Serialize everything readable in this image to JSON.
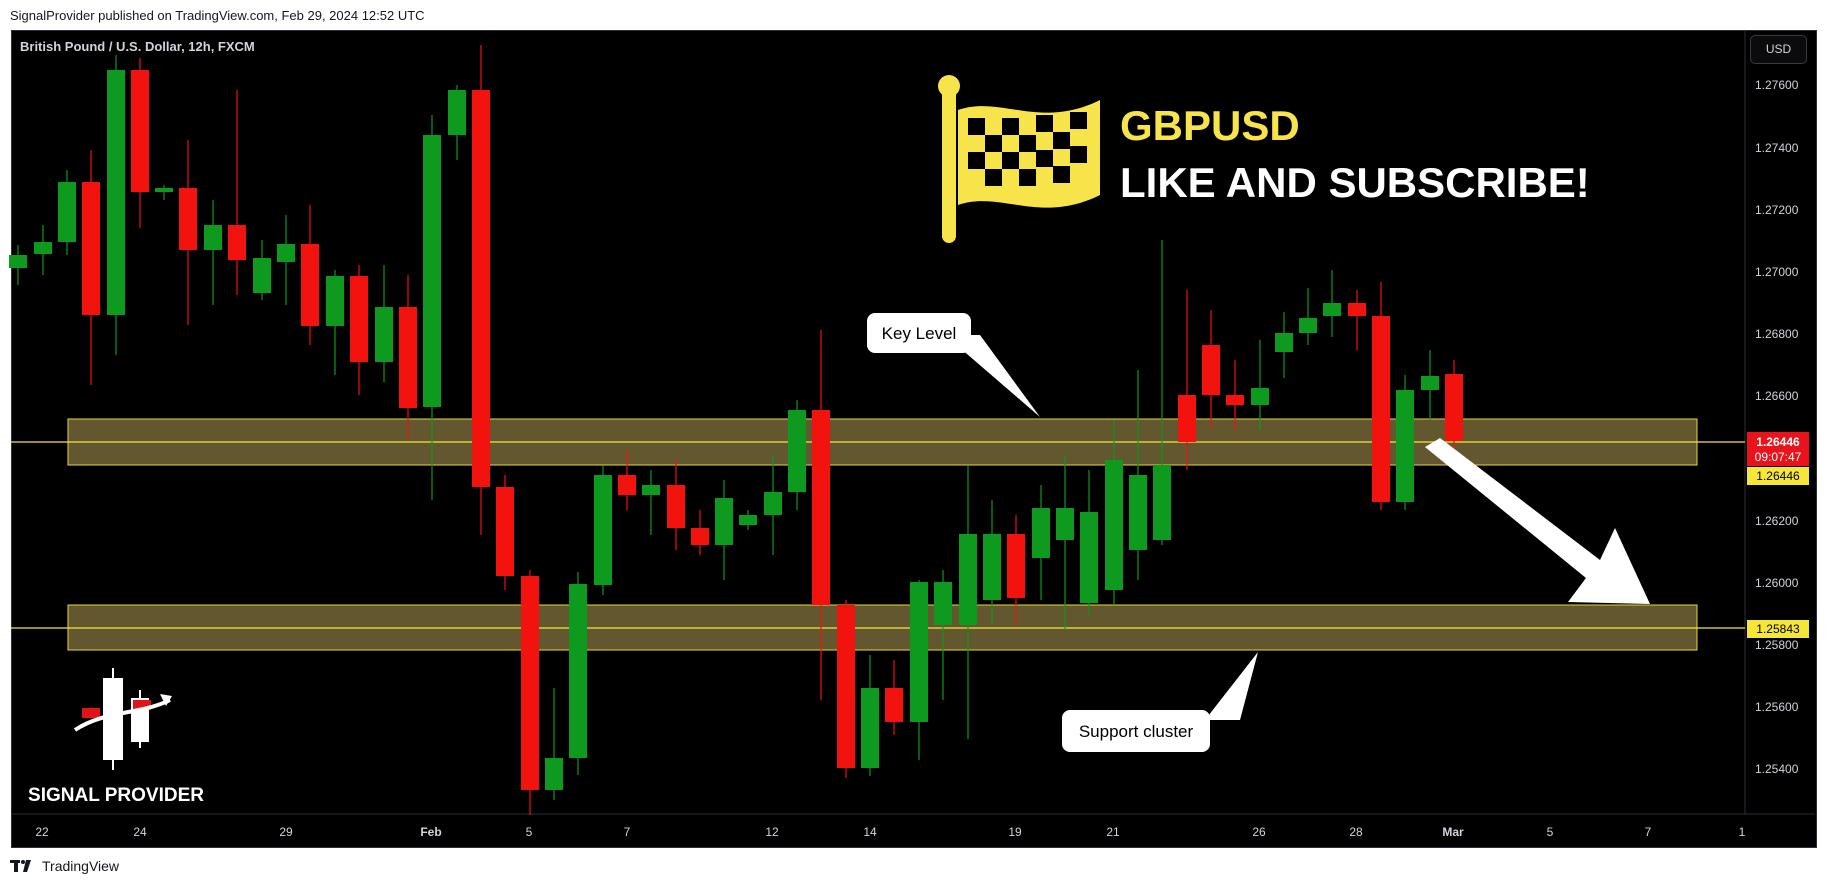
{
  "header": {
    "publish_text": "SignalProvider published on TradingView.com, Feb 29, 2024 12:52 UTC"
  },
  "chart": {
    "symbol_title": "British Pound / U.S. Dollar, 12h, FXCM",
    "currency": "USD",
    "price_axis_labels": [
      "1.27600",
      "1.27400",
      "1.27200",
      "1.27000",
      "1.26800",
      "1.26600",
      "1.26200",
      "1.26000",
      "1.25800",
      "1.25600",
      "1.25400"
    ],
    "time_axis_labels": [
      "22",
      "24",
      "29",
      "Feb",
      "5",
      "7",
      "12",
      "14",
      "19",
      "21",
      "26",
      "28",
      "Mar",
      "5",
      "7",
      "1"
    ],
    "current_price": "1.26446",
    "countdown": "09:07:47",
    "level_upper_label": "1.26446",
    "level_lower_label": "1.25843",
    "colors": {
      "up": "#0d9a1f",
      "down": "#f2120e",
      "zone_fill": "#62572e",
      "zone_border": "#e8d63a",
      "current_price_badge": "#e8131b",
      "level_badge": "#f5e63a"
    }
  },
  "overlay": {
    "pair": "GBPUSD",
    "cta": "LIKE AND SUBSCRIBE!",
    "flag_icon": "checkered-flag-icon",
    "callout_key_level": "Key Level",
    "callout_support": "Support cluster",
    "brand_name": "SIGNAL PROVIDER",
    "brand_icon": "signal-provider-candles-icon"
  },
  "footer": {
    "tradingview_label": "TradingView"
  }
}
